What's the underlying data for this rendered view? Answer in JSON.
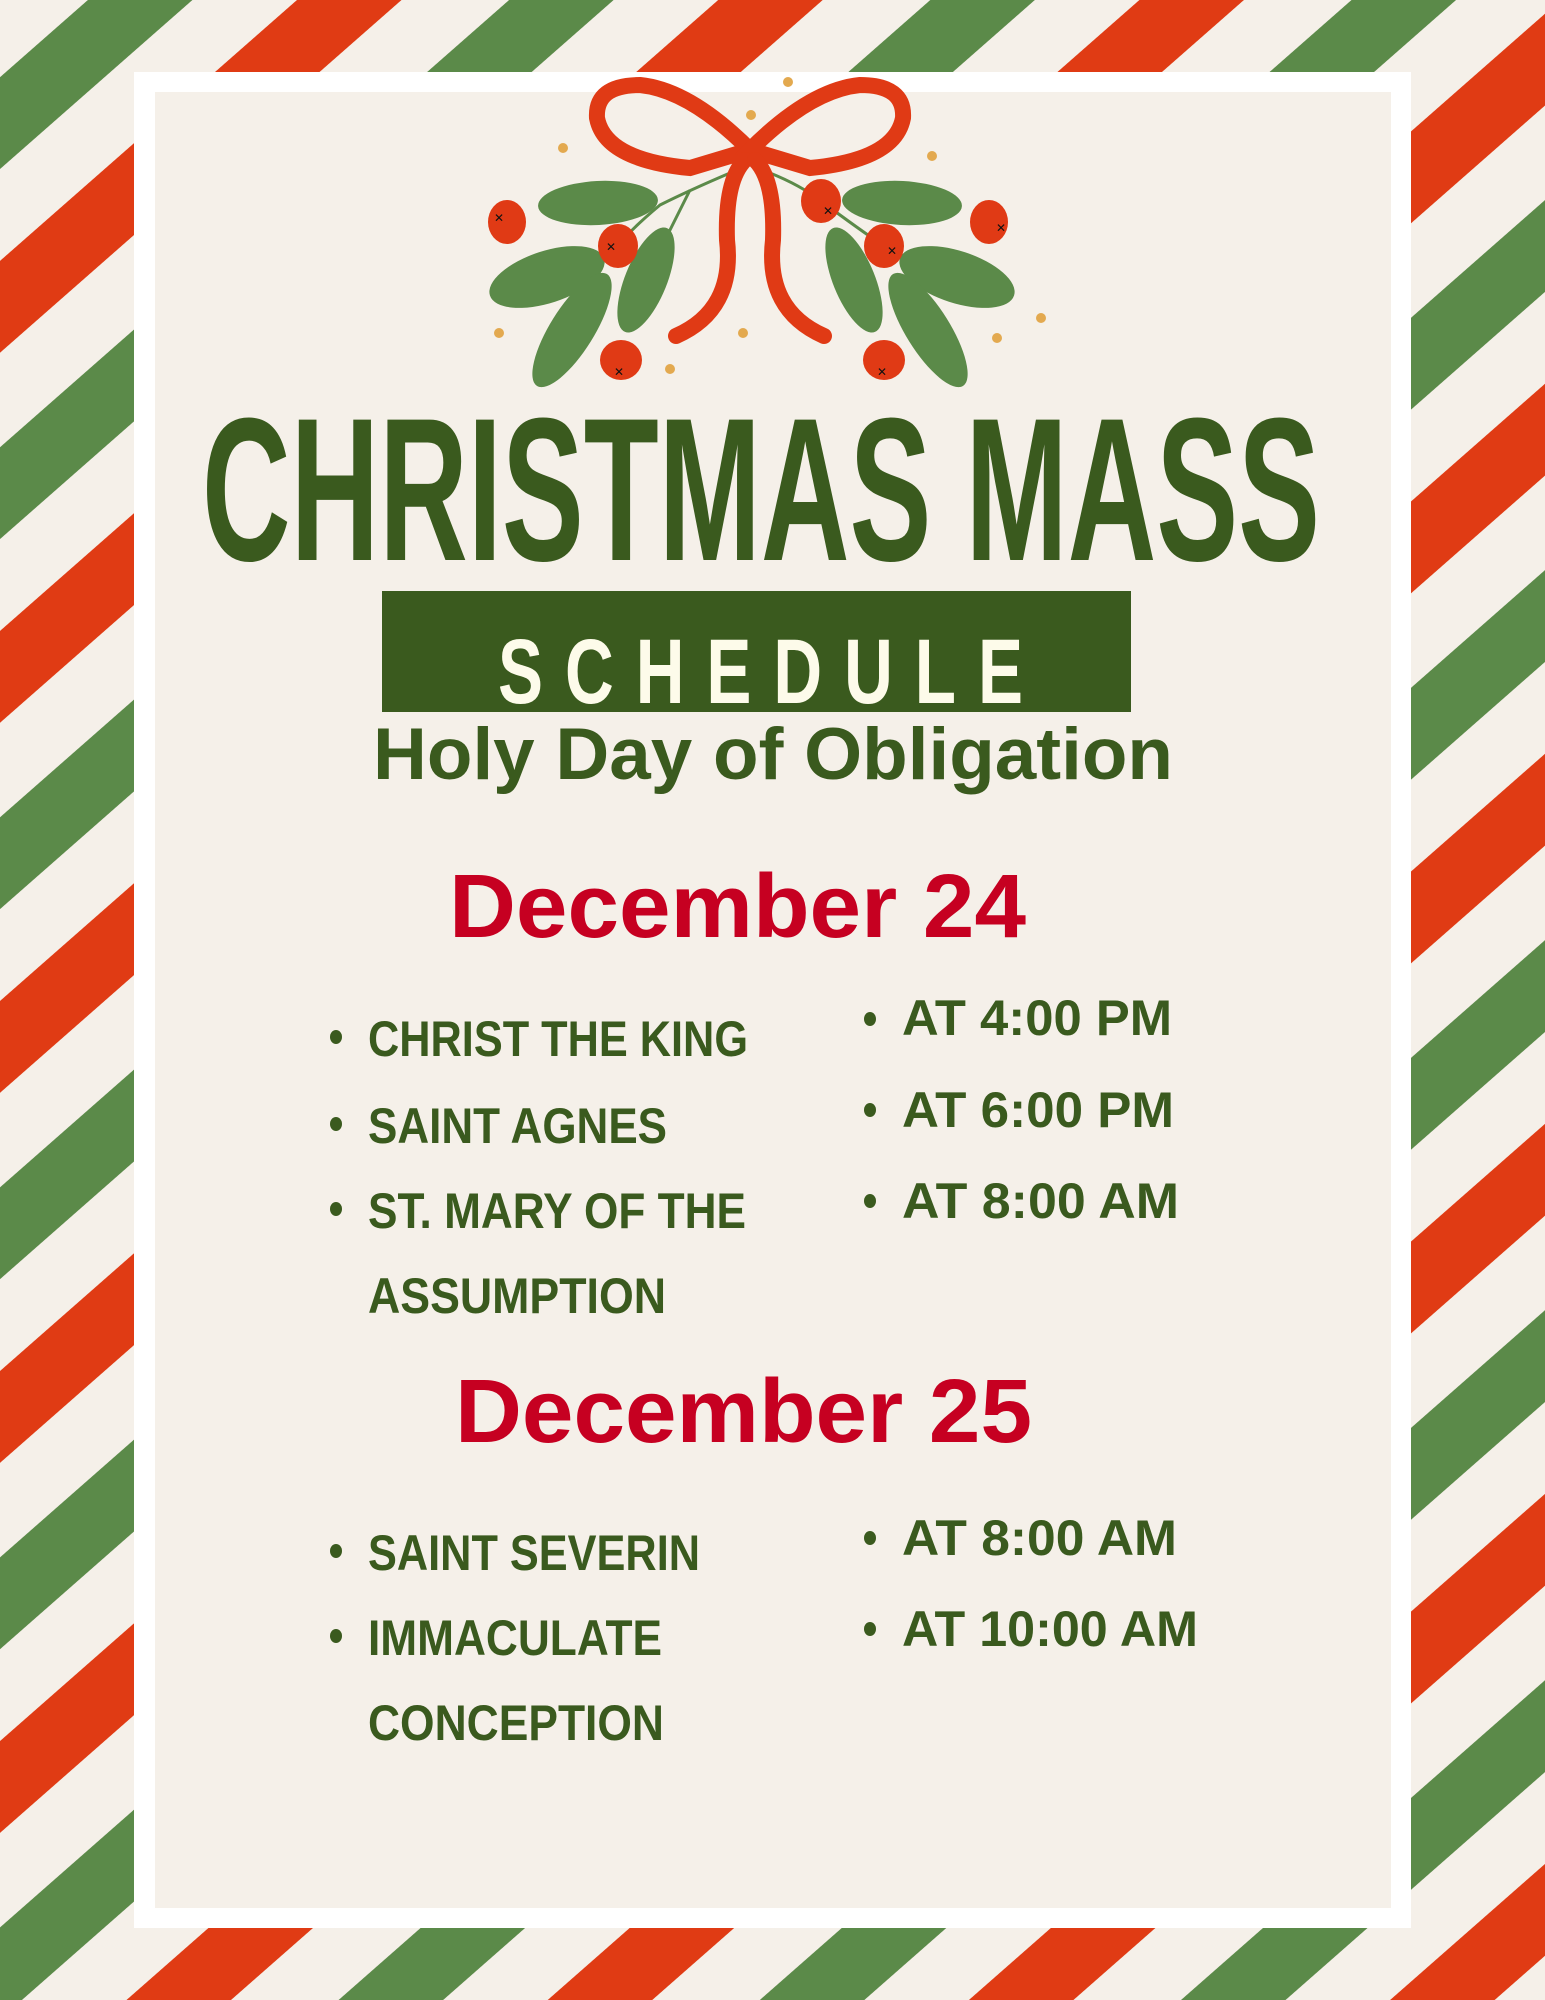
{
  "colors": {
    "stripe_green": "#5b8a49",
    "stripe_red": "#e03b14",
    "background": "#f5f0e9",
    "text_green": "#3a5a1e",
    "date_red": "#c60021",
    "ribbon_red": "#e03a15",
    "dot_gold": "#e3a94f"
  },
  "decoration": {
    "icon": "mistletoe-bow-icon"
  },
  "header": {
    "title": "CHRISTMAS MASS",
    "banner": "SCHEDULE",
    "subtitle": "Holy Day of Obligation"
  },
  "days": [
    {
      "date": "December 24",
      "churches": [
        "CHRIST THE KING",
        "SAINT AGNES",
        "ST. MARY OF THE",
        "ASSUMPTION"
      ],
      "times": [
        "AT 4:00 PM",
        "AT 6:00 PM",
        "AT 8:00 AM"
      ]
    },
    {
      "date": "December 25",
      "churches": [
        "SAINT SEVERIN",
        "IMMACULATE",
        "CONCEPTION"
      ],
      "times": [
        "AT 8:00 AM",
        "AT 10:00 AM"
      ]
    }
  ]
}
